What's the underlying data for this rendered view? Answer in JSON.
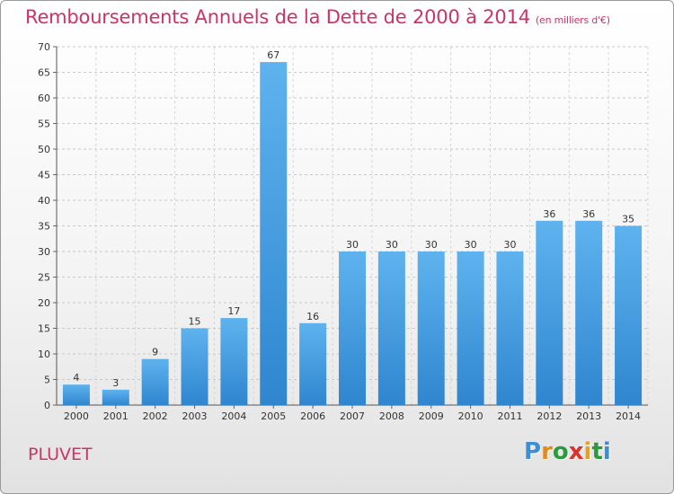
{
  "title": "Remboursements Annuels de la Dette de 2000 à 2014",
  "unit": "(en milliers d'€)",
  "place": "PLUVET",
  "logo": {
    "letters": [
      "P",
      "r",
      "o",
      "x",
      "i",
      "t",
      "i"
    ],
    "colors": [
      "#3a8fd6",
      "#e08a1f",
      "#2a9b3c",
      "#d8342c",
      "#e0a21f",
      "#2a9b3c",
      "#3a8fd6"
    ]
  },
  "colors": {
    "bar": "#3a93d8",
    "bar_light": "#5eb3ee",
    "title": "#cc3366"
  },
  "chart_data": {
    "type": "bar",
    "title": "Remboursements Annuels de la Dette de 2000 à 2014",
    "subtitle": "(en milliers d'€)",
    "categories": [
      "2000",
      "2001",
      "2002",
      "2003",
      "2004",
      "2005",
      "2006",
      "2007",
      "2008",
      "2009",
      "2010",
      "2011",
      "2012",
      "2013",
      "2014"
    ],
    "values": [
      4,
      3,
      9,
      15,
      17,
      67,
      16,
      30,
      30,
      30,
      30,
      30,
      36,
      36,
      35
    ],
    "ylim": [
      0,
      70
    ],
    "yticks": [
      0,
      5,
      10,
      15,
      20,
      25,
      30,
      35,
      40,
      45,
      50,
      55,
      60,
      65,
      70
    ],
    "grid": true
  }
}
